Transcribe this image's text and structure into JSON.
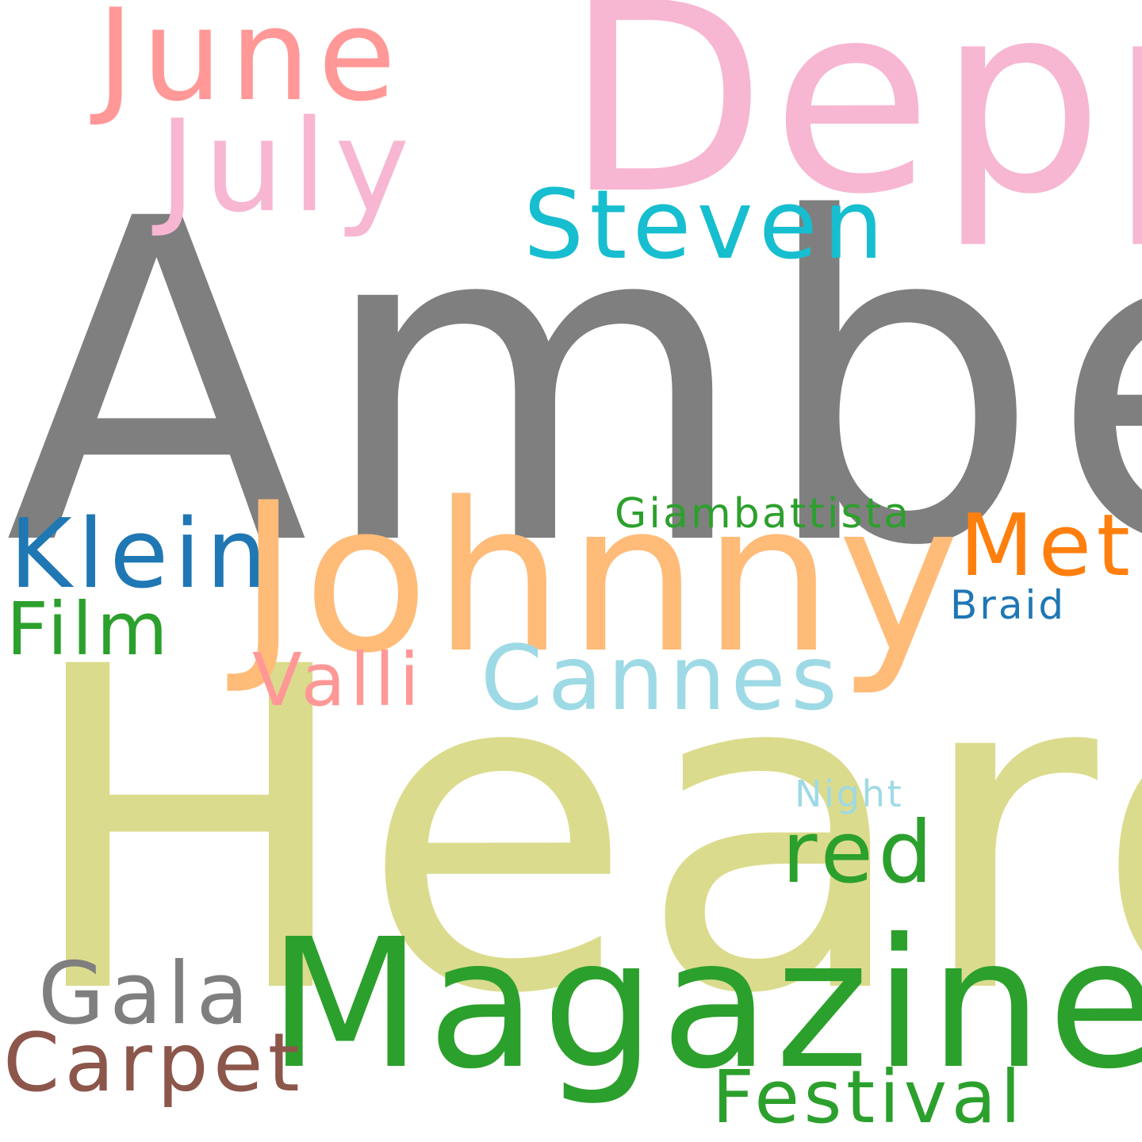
{
  "words": [
    {
      "key": "amber",
      "text": "Amber",
      "color": "#7f7f7f"
    },
    {
      "key": "heard",
      "text": "Heard",
      "color": "#dbdb8d"
    },
    {
      "key": "depp",
      "text": "Depp",
      "color": "#f7b6d2"
    },
    {
      "key": "johnny",
      "text": "Johnny",
      "color": "#ffbb78"
    },
    {
      "key": "magazine",
      "text": "Magazine",
      "color": "#2ca02c"
    },
    {
      "key": "june",
      "text": "June",
      "color": "#ff9896"
    },
    {
      "key": "july",
      "text": "July",
      "color": "#f7b6d2"
    },
    {
      "key": "steven",
      "text": "Steven",
      "color": "#17becf"
    },
    {
      "key": "klein",
      "text": "Klein",
      "color": "#1f77b4"
    },
    {
      "key": "met",
      "text": "Met",
      "color": "#ff7f0e"
    },
    {
      "key": "giamb",
      "text": "Giambattista",
      "color": "#2ca02c"
    },
    {
      "key": "braid",
      "text": "Braid",
      "color": "#1f77b4"
    },
    {
      "key": "film",
      "text": "Film",
      "color": "#2ca02c"
    },
    {
      "key": "valli",
      "text": "Valli",
      "color": "#ff9896"
    },
    {
      "key": "cannes",
      "text": "Cannes",
      "color": "#9edae5"
    },
    {
      "key": "night",
      "text": "Night",
      "color": "#9edae5"
    },
    {
      "key": "red",
      "text": "red",
      "color": "#2ca02c"
    },
    {
      "key": "gala",
      "text": "Gala",
      "color": "#7f7f7f"
    },
    {
      "key": "carpet",
      "text": "Carpet",
      "color": "#8c564b"
    },
    {
      "key": "festival",
      "text": "Festival",
      "color": "#2ca02c"
    }
  ]
}
